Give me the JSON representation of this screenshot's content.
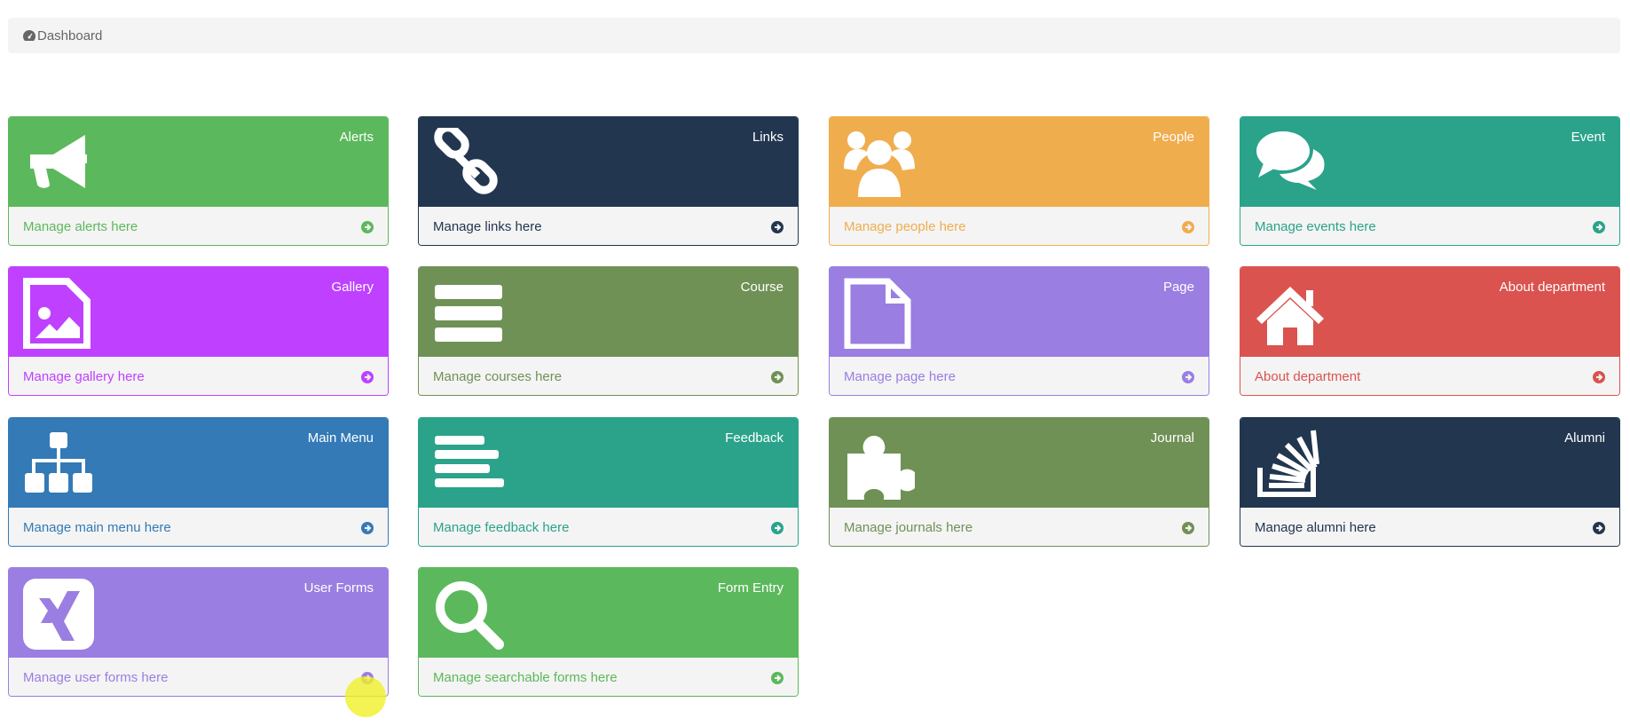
{
  "breadcrumb": {
    "icon": "dashboard-icon",
    "label": "Dashboard"
  },
  "cards": [
    {
      "title": "Alerts",
      "link": "Manage alerts here",
      "icon": "bullhorn-icon",
      "color": "#5cb85c"
    },
    {
      "title": "Links",
      "link": "Manage links here",
      "icon": "chain-icon",
      "color": "#22364f"
    },
    {
      "title": "People",
      "link": "Manage people here",
      "icon": "users-icon",
      "color": "#f0ad4e"
    },
    {
      "title": "Event",
      "link": "Manage events here",
      "icon": "comments-icon",
      "color": "#2aa38a"
    },
    {
      "title": "Gallery",
      "link": "Manage gallery here",
      "icon": "file-image-icon",
      "color": "#bf40ff"
    },
    {
      "title": "Course",
      "link": "Manage courses here",
      "icon": "server-icon",
      "color": "#6f9155"
    },
    {
      "title": "Page",
      "link": "Manage page here",
      "icon": "file-icon",
      "color": "#9a7ee2"
    },
    {
      "title": "About department",
      "link": "About department",
      "icon": "home-icon",
      "color": "#da534f"
    },
    {
      "title": "Main Menu",
      "link": "Manage main menu here",
      "icon": "sitemap-icon",
      "color": "#337ab7"
    },
    {
      "title": "Feedback",
      "link": "Manage feedback here",
      "icon": "align-left-icon",
      "color": "#2aa38a"
    },
    {
      "title": "Journal",
      "link": "Manage journals here",
      "icon": "puzzle-icon",
      "color": "#6f9155"
    },
    {
      "title": "Alumni",
      "link": "Manage alumni here",
      "icon": "stack-overflow-icon",
      "color": "#22364f"
    },
    {
      "title": "User Forms",
      "link": "Manage user forms here",
      "icon": "xing-square-icon",
      "color": "#9a7ee2"
    },
    {
      "title": "Form Entry",
      "link": "Manage searchable forms here",
      "icon": "search-icon",
      "color": "#5cb85c"
    }
  ]
}
